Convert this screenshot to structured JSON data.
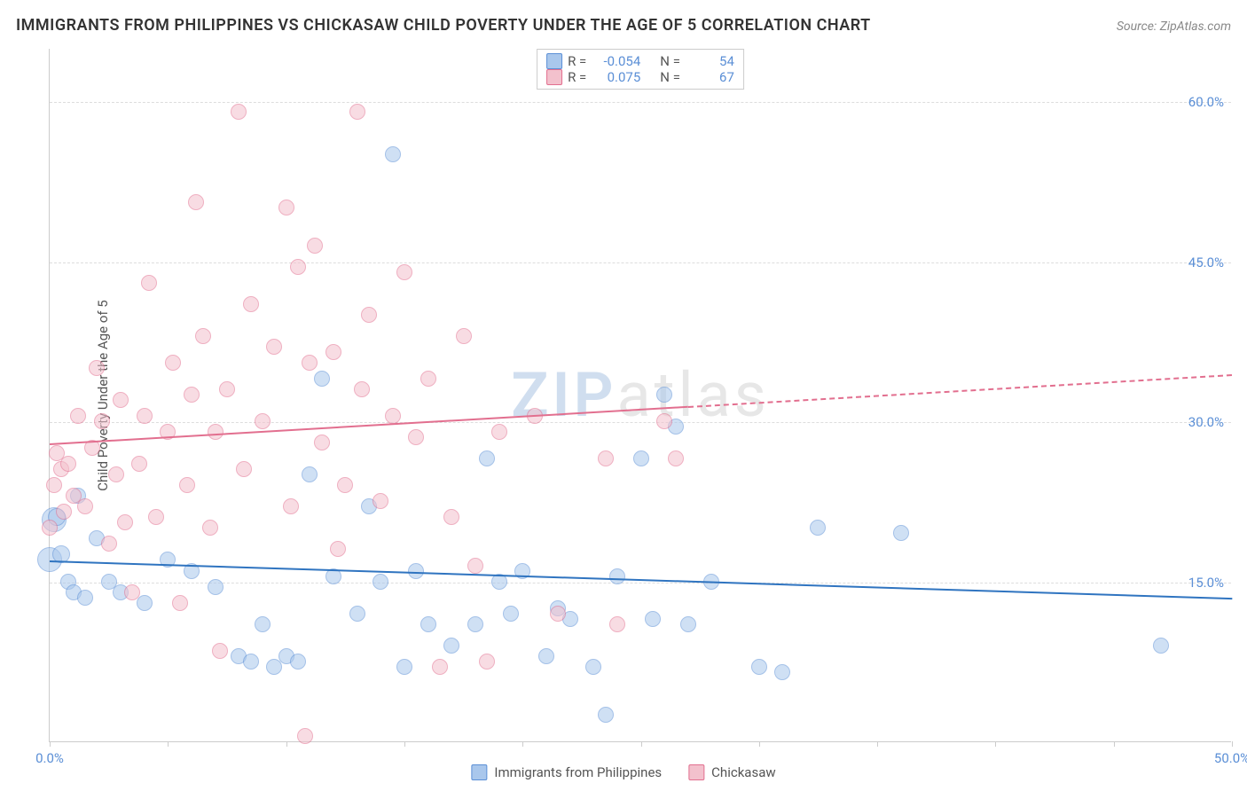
{
  "title": "IMMIGRANTS FROM PHILIPPINES VS CHICKASAW CHILD POVERTY UNDER THE AGE OF 5 CORRELATION CHART",
  "source_label": "Source: ZipAtlas.com",
  "ylabel": "Child Poverty Under the Age of 5",
  "watermark": {
    "z": "ZIP",
    "rest": "atlas"
  },
  "chart": {
    "type": "scatter",
    "background_color": "#ffffff",
    "grid_color": "#dddddd",
    "axis_color": "#cccccc",
    "text_color": "#555555",
    "tick_label_color": "#5b8fd6",
    "title_fontsize": 18,
    "label_fontsize": 15,
    "tick_fontsize": 15,
    "xlim": [
      0,
      50
    ],
    "ylim": [
      0,
      65
    ],
    "x_ticks_minor": [
      0,
      5,
      10,
      15,
      20,
      25,
      30,
      35,
      40,
      45,
      50
    ],
    "x_ticks_labeled": [
      {
        "v": 0,
        "label": "0.0%"
      },
      {
        "v": 50,
        "label": "50.0%"
      }
    ],
    "y_ticks": [
      {
        "v": 15,
        "label": "15.0%"
      },
      {
        "v": 30,
        "label": "30.0%"
      },
      {
        "v": 45,
        "label": "45.0%"
      },
      {
        "v": 60,
        "label": "60.0%"
      }
    ],
    "point_radius": 8,
    "point_opacity": 0.55,
    "point_stroke_width": 1.2,
    "series": [
      {
        "id": "philippines",
        "label": "Immigrants from Philippines",
        "fill": "#a9c7ec",
        "stroke": "#5b8fd6",
        "R": "-0.054",
        "N": "54",
        "trend": {
          "x0": 0,
          "y0": 17.0,
          "x1": 50,
          "y1": 13.5,
          "color": "#2f74c0",
          "width": 2,
          "dash_from_x": null
        },
        "points": [
          [
            0.0,
            17.0,
            14
          ],
          [
            0.2,
            20.8,
            14
          ],
          [
            0.3,
            21.0,
            10
          ],
          [
            0.5,
            17.5,
            10
          ],
          [
            0.8,
            15.0,
            9
          ],
          [
            1.0,
            14.0,
            9
          ],
          [
            1.2,
            23.0,
            9
          ],
          [
            1.5,
            13.5,
            9
          ],
          [
            2.0,
            19.0,
            9
          ],
          [
            2.5,
            15.0,
            9
          ],
          [
            3.0,
            14.0,
            9
          ],
          [
            4.0,
            13.0,
            9
          ],
          [
            5.0,
            17.0,
            9
          ],
          [
            6.0,
            16.0,
            9
          ],
          [
            7.0,
            14.5,
            9
          ],
          [
            8.0,
            8.0,
            9
          ],
          [
            8.5,
            7.5,
            9
          ],
          [
            9.0,
            11.0,
            9
          ],
          [
            9.5,
            7.0,
            9
          ],
          [
            10.0,
            8.0,
            9
          ],
          [
            10.5,
            7.5,
            9
          ],
          [
            11.0,
            25.0,
            9
          ],
          [
            11.5,
            34.0,
            9
          ],
          [
            12.0,
            15.5,
            9
          ],
          [
            13.0,
            12.0,
            9
          ],
          [
            13.5,
            22.0,
            9
          ],
          [
            14.0,
            15.0,
            9
          ],
          [
            14.5,
            55.0,
            9
          ],
          [
            15.0,
            7.0,
            9
          ],
          [
            15.5,
            16.0,
            9
          ],
          [
            16.0,
            11.0,
            9
          ],
          [
            17.0,
            9.0,
            9
          ],
          [
            18.0,
            11.0,
            9
          ],
          [
            18.5,
            26.5,
            9
          ],
          [
            19.0,
            15.0,
            9
          ],
          [
            19.5,
            12.0,
            9
          ],
          [
            20.0,
            16.0,
            9
          ],
          [
            21.0,
            8.0,
            9
          ],
          [
            21.5,
            12.5,
            9
          ],
          [
            22.0,
            11.5,
            9
          ],
          [
            23.0,
            7.0,
            9
          ],
          [
            23.5,
            2.5,
            9
          ],
          [
            24.0,
            15.5,
            9
          ],
          [
            25.0,
            26.5,
            9
          ],
          [
            25.5,
            11.5,
            9
          ],
          [
            26.0,
            32.5,
            9
          ],
          [
            26.5,
            29.5,
            9
          ],
          [
            27.0,
            11.0,
            9
          ],
          [
            28.0,
            15.0,
            9
          ],
          [
            30.0,
            7.0,
            9
          ],
          [
            31.0,
            6.5,
            9
          ],
          [
            32.5,
            20.0,
            9
          ],
          [
            36.0,
            19.5,
            9
          ],
          [
            47.0,
            9.0,
            9
          ]
        ]
      },
      {
        "id": "chickasaw",
        "label": "Chickasaw",
        "fill": "#f3c1cd",
        "stroke": "#e26f8f",
        "R": "0.075",
        "N": "67",
        "trend": {
          "x0": 0,
          "y0": 28.0,
          "x1": 50,
          "y1": 34.5,
          "color": "#e26f8f",
          "width": 2,
          "dash_from_x": 27
        },
        "points": [
          [
            0.0,
            20.0,
            9
          ],
          [
            0.2,
            24.0,
            9
          ],
          [
            0.3,
            27.0,
            9
          ],
          [
            0.5,
            25.5,
            9
          ],
          [
            0.6,
            21.5,
            9
          ],
          [
            0.8,
            26.0,
            9
          ],
          [
            1.0,
            23.0,
            9
          ],
          [
            1.2,
            30.5,
            9
          ],
          [
            1.5,
            22.0,
            9
          ],
          [
            1.8,
            27.5,
            9
          ],
          [
            2.0,
            35.0,
            9
          ],
          [
            2.2,
            30.0,
            9
          ],
          [
            2.5,
            18.5,
            9
          ],
          [
            2.8,
            25.0,
            9
          ],
          [
            3.0,
            32.0,
            9
          ],
          [
            3.2,
            20.5,
            9
          ],
          [
            3.5,
            14.0,
            9
          ],
          [
            3.8,
            26.0,
            9
          ],
          [
            4.0,
            30.5,
            9
          ],
          [
            4.2,
            43.0,
            9
          ],
          [
            4.5,
            21.0,
            9
          ],
          [
            5.0,
            29.0,
            9
          ],
          [
            5.2,
            35.5,
            9
          ],
          [
            5.5,
            13.0,
            9
          ],
          [
            5.8,
            24.0,
            9
          ],
          [
            6.0,
            32.5,
            9
          ],
          [
            6.2,
            50.5,
            9
          ],
          [
            6.5,
            38.0,
            9
          ],
          [
            6.8,
            20.0,
            9
          ],
          [
            7.0,
            29.0,
            9
          ],
          [
            7.2,
            8.5,
            9
          ],
          [
            7.5,
            33.0,
            9
          ],
          [
            8.0,
            59.0,
            9
          ],
          [
            8.2,
            25.5,
            9
          ],
          [
            8.5,
            41.0,
            9
          ],
          [
            9.0,
            30.0,
            9
          ],
          [
            9.5,
            37.0,
            9
          ],
          [
            10.0,
            50.0,
            9
          ],
          [
            10.2,
            22.0,
            9
          ],
          [
            10.5,
            44.5,
            9
          ],
          [
            10.8,
            0.5,
            9
          ],
          [
            11.0,
            35.5,
            9
          ],
          [
            11.2,
            46.5,
            9
          ],
          [
            11.5,
            28.0,
            9
          ],
          [
            12.0,
            36.5,
            9
          ],
          [
            12.2,
            18.0,
            9
          ],
          [
            12.5,
            24.0,
            9
          ],
          [
            13.0,
            59.0,
            9
          ],
          [
            13.2,
            33.0,
            9
          ],
          [
            13.5,
            40.0,
            9
          ],
          [
            14.0,
            22.5,
            9
          ],
          [
            14.5,
            30.5,
            9
          ],
          [
            15.0,
            44.0,
            9
          ],
          [
            15.5,
            28.5,
            9
          ],
          [
            16.0,
            34.0,
            9
          ],
          [
            16.5,
            7.0,
            9
          ],
          [
            17.0,
            21.0,
            9
          ],
          [
            17.5,
            38.0,
            9
          ],
          [
            18.0,
            16.5,
            9
          ],
          [
            18.5,
            7.5,
            9
          ],
          [
            19.0,
            29.0,
            9
          ],
          [
            20.5,
            30.5,
            9
          ],
          [
            21.5,
            12.0,
            9
          ],
          [
            23.5,
            26.5,
            9
          ],
          [
            24.0,
            11.0,
            9
          ],
          [
            26.0,
            30.0,
            9
          ],
          [
            26.5,
            26.5,
            9
          ]
        ]
      }
    ]
  },
  "legend_top": {
    "R_label": "R =",
    "N_label": "N ="
  },
  "legend_bottom": {}
}
